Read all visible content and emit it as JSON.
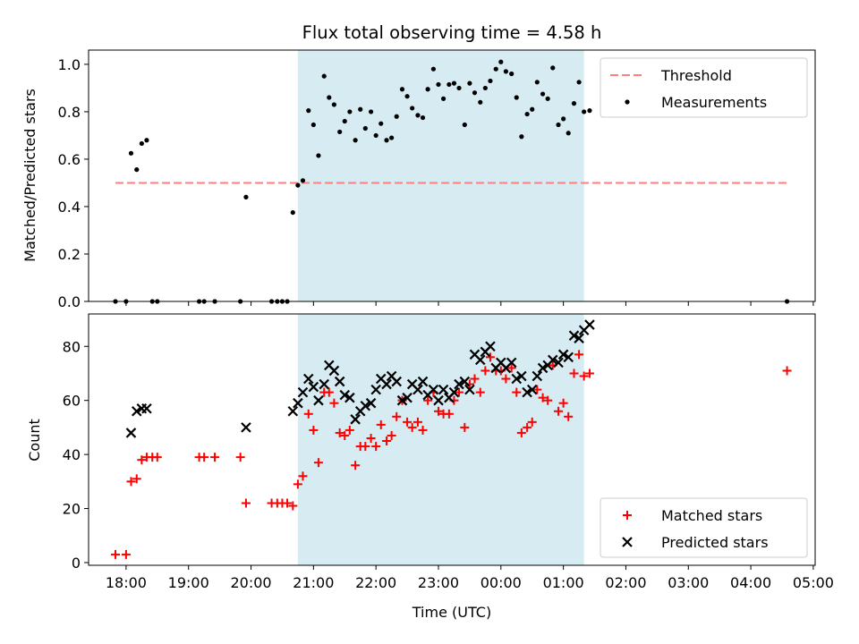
{
  "chart_data": {
    "type": "scatter",
    "title": "Flux total observing time = 4.58 h",
    "xlabel": "Time (UTC)",
    "x_ticks": [
      "18:00",
      "19:00",
      "20:00",
      "21:00",
      "22:00",
      "23:00",
      "00:00",
      "01:00",
      "02:00",
      "03:00",
      "04:00",
      "05:00"
    ],
    "x_range_hours": [
      17.4,
      29.03
    ],
    "shaded_interval_hours": [
      20.75,
      25.33
    ],
    "shade_color": "#add8e6",
    "panels": [
      {
        "ylabel": "Matched/Predicted stars",
        "ylim": [
          0,
          1.06
        ],
        "y_ticks": [
          "0.0",
          "0.2",
          "0.4",
          "0.6",
          "0.8",
          "1.0"
        ],
        "threshold": {
          "name": "Threshold",
          "y": 0.5,
          "x_range": [
            17.83,
            28.58
          ],
          "color": "#ff7f7f"
        },
        "legend": {
          "location": "upper right",
          "entries": [
            "Threshold",
            "Measurements"
          ]
        },
        "series": [
          {
            "name": "Measurements",
            "marker": "dot",
            "color": "#000000",
            "x": [
              17.83,
              18.0,
              18.08,
              18.17,
              18.25,
              18.33,
              18.42,
              18.5,
              19.17,
              19.25,
              19.42,
              19.83,
              19.92,
              20.33,
              20.42,
              20.5,
              20.58,
              20.67,
              20.75,
              20.83,
              20.92,
              21.0,
              21.08,
              21.17,
              21.25,
              21.33,
              21.42,
              21.5,
              21.58,
              21.67,
              21.75,
              21.83,
              21.92,
              22.0,
              22.08,
              22.17,
              22.25,
              22.33,
              22.42,
              22.5,
              22.58,
              22.67,
              22.75,
              22.83,
              22.92,
              23.0,
              23.08,
              23.17,
              23.25,
              23.33,
              23.42,
              23.5,
              23.58,
              23.67,
              23.75,
              23.83,
              23.92,
              24.0,
              24.08,
              24.17,
              24.25,
              24.33,
              24.42,
              24.5,
              24.58,
              24.67,
              24.75,
              24.83,
              24.92,
              25.0,
              25.08,
              25.17,
              25.25,
              25.33,
              25.42,
              28.58
            ],
            "y": [
              0.0,
              0.0,
              0.625,
              0.556,
              0.666,
              0.68,
              0.0,
              0.0,
              0.0,
              0.0,
              0.0,
              0.0,
              0.44,
              0.0,
              0.0,
              0.0,
              0.0,
              0.375,
              0.49,
              0.51,
              0.805,
              0.745,
              0.615,
              0.95,
              0.86,
              0.83,
              0.715,
              0.76,
              0.8,
              0.68,
              0.81,
              0.73,
              0.8,
              0.7,
              0.75,
              0.68,
              0.69,
              0.78,
              0.895,
              0.865,
              0.815,
              0.785,
              0.775,
              0.895,
              0.98,
              0.915,
              0.855,
              0.915,
              0.92,
              0.9,
              0.745,
              0.92,
              0.88,
              0.84,
              0.9,
              0.93,
              0.98,
              1.01,
              0.97,
              0.96,
              0.86,
              0.695,
              0.79,
              0.81,
              0.925,
              0.875,
              0.855,
              0.985,
              0.745,
              0.77,
              0.71,
              0.835,
              0.925,
              0.8,
              0.805,
              0.0
            ]
          }
        ]
      },
      {
        "ylabel": "Count",
        "ylim": [
          -1,
          92
        ],
        "y_ticks": [
          "0",
          "20",
          "40",
          "60",
          "80"
        ],
        "legend": {
          "location": "lower right",
          "entries": [
            "Matched stars",
            "Predicted stars"
          ]
        },
        "series": [
          {
            "name": "Matched stars",
            "marker": "plus",
            "color": "#ff0000",
            "x": [
              17.83,
              18.0,
              18.08,
              18.17,
              18.25,
              18.33,
              18.42,
              18.5,
              19.17,
              19.25,
              19.42,
              19.83,
              19.92,
              20.33,
              20.42,
              20.5,
              20.58,
              20.67,
              20.75,
              20.83,
              20.92,
              21.0,
              21.08,
              21.17,
              21.25,
              21.33,
              21.42,
              21.5,
              21.58,
              21.67,
              21.75,
              21.83,
              21.92,
              22.0,
              22.08,
              22.17,
              22.25,
              22.33,
              22.42,
              22.5,
              22.58,
              22.67,
              22.75,
              22.83,
              22.92,
              23.0,
              23.08,
              23.17,
              23.25,
              23.33,
              23.42,
              23.5,
              23.58,
              23.67,
              23.75,
              23.83,
              23.92,
              24.0,
              24.08,
              24.17,
              24.25,
              24.33,
              24.42,
              24.5,
              24.58,
              24.67,
              24.75,
              24.83,
              24.92,
              25.0,
              25.08,
              25.17,
              25.25,
              25.33,
              25.42,
              28.58
            ],
            "y": [
              3,
              3,
              30,
              31,
              38,
              39,
              39,
              39,
              39,
              39,
              39,
              39,
              22,
              22,
              22,
              22,
              22,
              21,
              29,
              32,
              55,
              49,
              37,
              63,
              63,
              59,
              48,
              47,
              49,
              36,
              43,
              43,
              46,
              43,
              51,
              45,
              47,
              54,
              60,
              52,
              50,
              52,
              49,
              60,
              63,
              56,
              55,
              55,
              60,
              63,
              50,
              66,
              68,
              63,
              71,
              76,
              71,
              71,
              68,
              72,
              63,
              48,
              50,
              52,
              64,
              61,
              60,
              73,
              56,
              59,
              54,
              70,
              77,
              69,
              70,
              71
            ]
          },
          {
            "name": "Predicted stars",
            "marker": "x",
            "color": "#000000",
            "x": [
              18.08,
              18.17,
              18.25,
              18.33,
              19.92,
              20.67,
              20.75,
              20.83,
              20.92,
              21.0,
              21.08,
              21.17,
              21.25,
              21.33,
              21.42,
              21.5,
              21.58,
              21.67,
              21.75,
              21.83,
              21.92,
              22.0,
              22.08,
              22.17,
              22.25,
              22.33,
              22.42,
              22.5,
              22.58,
              22.67,
              22.75,
              22.83,
              22.92,
              23.0,
              23.08,
              23.17,
              23.25,
              23.33,
              23.42,
              23.5,
              23.58,
              23.67,
              23.75,
              23.83,
              23.92,
              24.0,
              24.08,
              24.17,
              24.25,
              24.33,
              24.42,
              24.5,
              24.58,
              24.67,
              24.75,
              24.83,
              24.92,
              25.0,
              25.08,
              25.17,
              25.25,
              25.33,
              25.42
            ],
            "y": [
              48,
              56,
              57,
              57,
              50,
              56,
              59,
              63,
              68,
              65,
              60,
              66,
              73,
              71,
              67,
              62,
              61,
              53,
              56,
              58,
              59,
              64,
              68,
              66,
              69,
              67,
              60,
              61,
              66,
              64,
              67,
              62,
              64,
              60,
              64,
              61,
              63,
              66,
              67,
              64,
              77,
              75,
              78,
              80,
              72,
              74,
              72,
              74,
              68,
              69,
              63,
              64,
              69,
              72,
              73,
              75,
              74,
              77,
              76,
              84,
              83,
              86,
              88
            ]
          }
        ]
      }
    ]
  }
}
